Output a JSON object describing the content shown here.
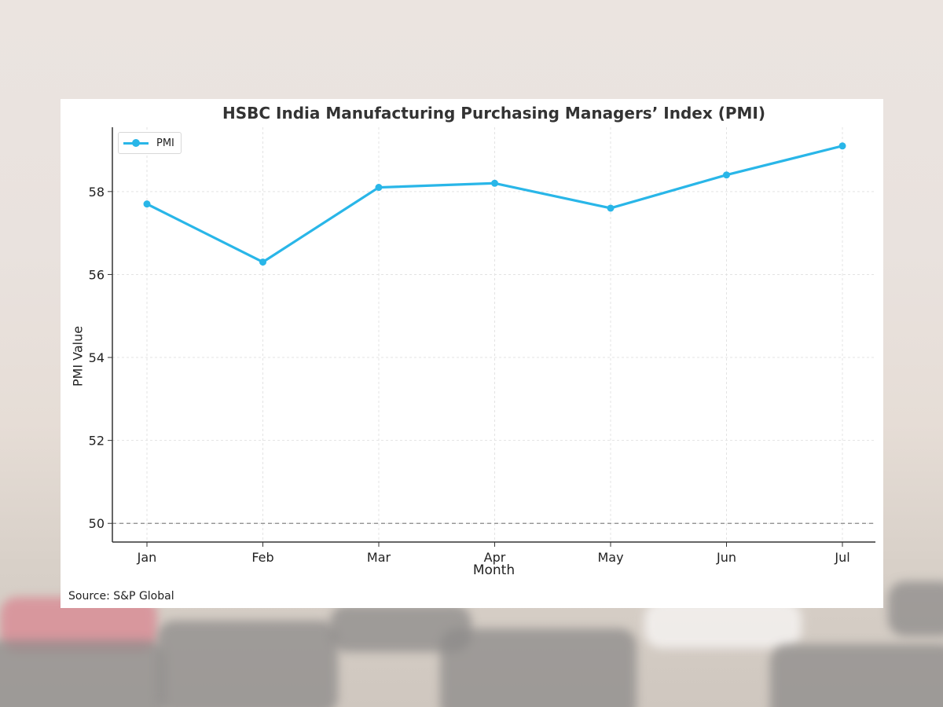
{
  "chart_data": {
    "type": "line",
    "title": "HSBC India Manufacturing Purchasing Managers’ Index (PMI)",
    "xlabel": "Month",
    "ylabel": "PMI Value",
    "categories": [
      "Jan",
      "Feb",
      "Mar",
      "Apr",
      "May",
      "Jun",
      "Jul"
    ],
    "series": [
      {
        "name": "PMI",
        "values": [
          57.7,
          56.3,
          58.1,
          58.2,
          57.6,
          58.4,
          59.1
        ],
        "color": "#29b6e8"
      }
    ],
    "ylim": [
      49.55,
      59.55
    ],
    "yticks": [
      50,
      52,
      54,
      56,
      58
    ],
    "reference_line": {
      "value": 50,
      "style": "dashed",
      "color": "#888888"
    },
    "grid": true,
    "legend": "top-left",
    "source": "Source: S&P Global"
  }
}
